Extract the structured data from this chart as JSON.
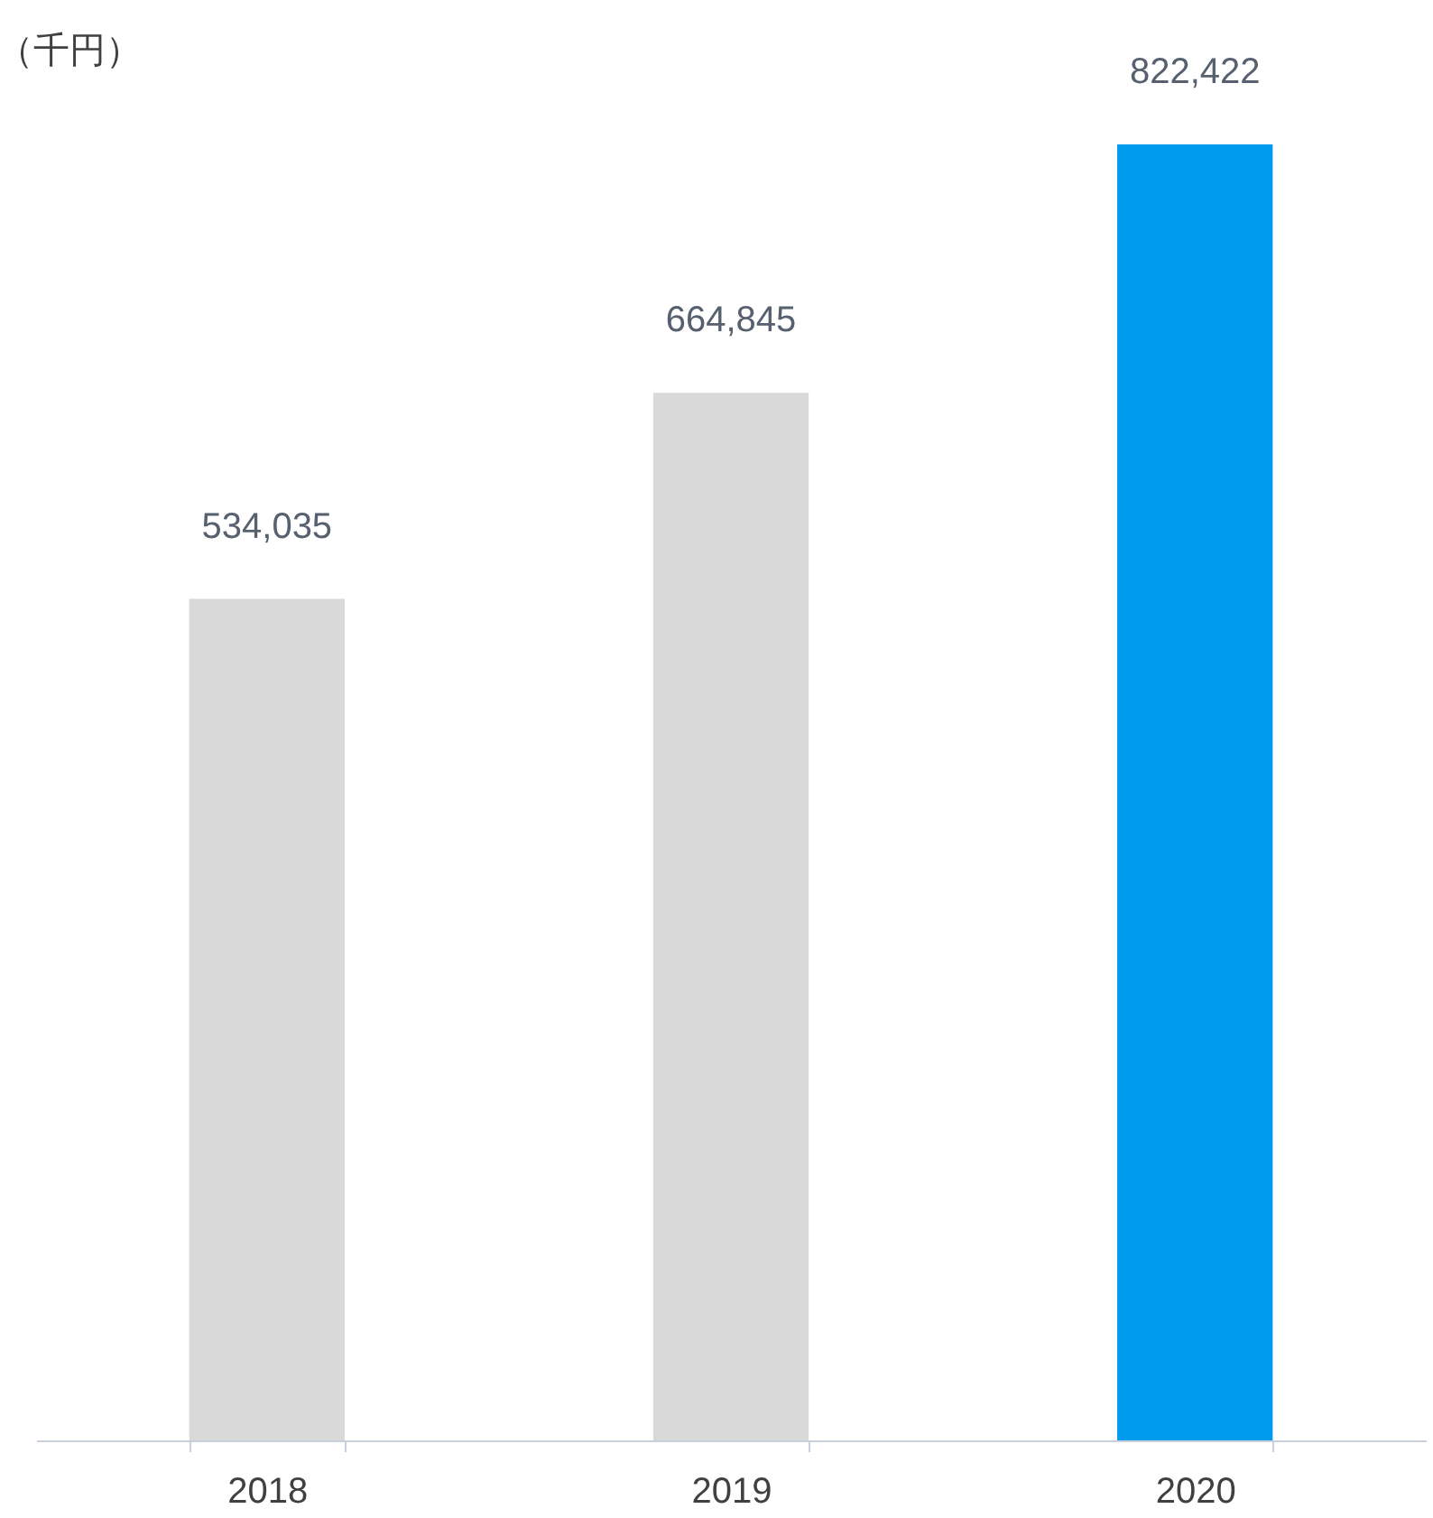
{
  "chart_data": {
    "type": "bar",
    "ylabel": "（千円）",
    "categories": [
      "2018",
      "2019",
      "2020"
    ],
    "values": [
      534035,
      664845,
      822422
    ],
    "colors": [
      "#d9d9d9",
      "#d9d9d9",
      "#009bec"
    ],
    "value_labels": [
      "534,035",
      "664,845",
      "822,422"
    ],
    "tick_labels": "x"
  }
}
